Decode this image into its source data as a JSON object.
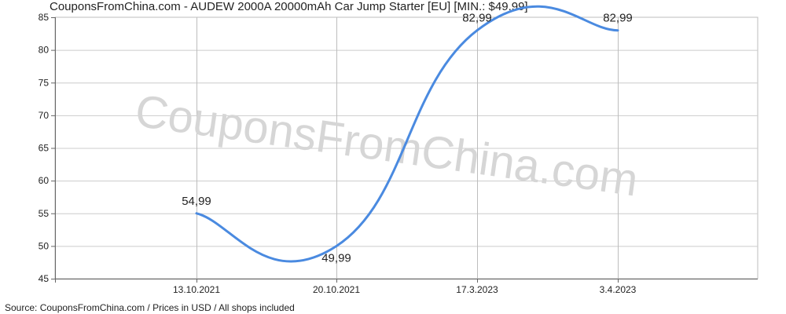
{
  "chart_data": {
    "type": "line",
    "title": "CouponsFromChina.com - AUDEW 2000A 20000mAh Car Jump Starter [EU] [MIN.: $49.99]",
    "footer": "Source: CouponsFromChina.com / Prices in USD / All shops included",
    "watermark": "CouponsFromChina.com",
    "categories": [
      "13.10.2021",
      "20.10.2021",
      "17.3.2023",
      "3.4.2023"
    ],
    "series": [
      {
        "values": [
          54.99,
          49.99,
          82.99,
          82.99
        ],
        "labels": [
          "54,99",
          "49,99",
          "82,99",
          "82,99"
        ],
        "color": "#4a8ae0"
      }
    ],
    "ylim": [
      45,
      85
    ],
    "yticks": [
      45,
      50,
      55,
      60,
      65,
      70,
      75,
      80,
      85
    ],
    "grid": true,
    "xlabel": "",
    "ylabel": ""
  }
}
